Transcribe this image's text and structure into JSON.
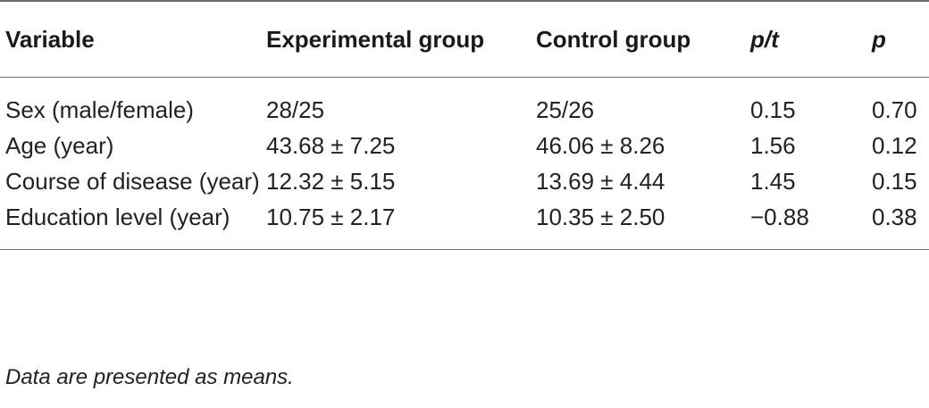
{
  "table": {
    "headers": [
      "Variable",
      "Experimental group",
      "Control group",
      "p/t",
      "p"
    ],
    "rows": [
      [
        "Sex (male/female)",
        "28/25",
        "25/26",
        "0.15",
        "0.70"
      ],
      [
        "Age (year)",
        "43.68 ± 7.25",
        "46.06 ± 8.26",
        "1.56",
        "0.12"
      ],
      [
        "Course of disease (year)",
        "12.32 ± 5.15",
        "13.69 ± 4.44",
        "1.45",
        "0.15"
      ],
      [
        "Education level (year)",
        "10.75 ± 2.17",
        "10.35 ± 2.50",
        "−0.88",
        "0.38"
      ]
    ]
  },
  "footnote": "Data are presented as means."
}
